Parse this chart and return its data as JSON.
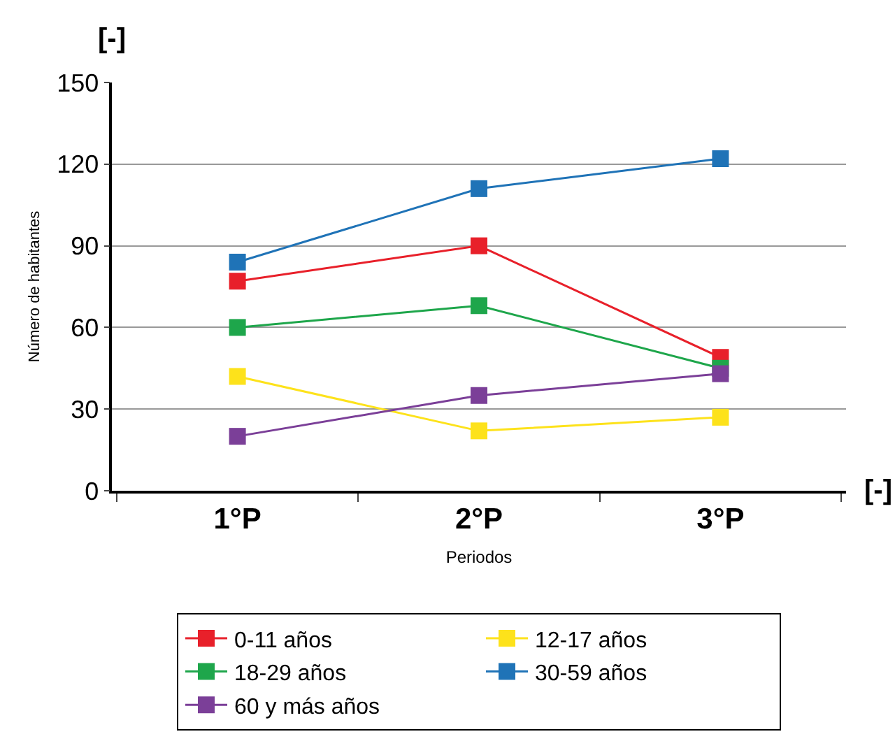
{
  "chart_data": {
    "type": "line",
    "xlabel": "Periodos",
    "ylabel": "Número de habitantes",
    "categories": [
      "1°P",
      "2°P",
      "3°P"
    ],
    "series": [
      {
        "name": "0-11 años",
        "color": "#e8202a",
        "values": [
          77,
          90,
          49
        ]
      },
      {
        "name": "12-17 años",
        "color": "#fde21b",
        "values": [
          42,
          22,
          27
        ]
      },
      {
        "name": "18-29 años",
        "color": "#1ea64b",
        "values": [
          60,
          68,
          45
        ]
      },
      {
        "name": "30-59 años",
        "color": "#1f73b7",
        "values": [
          84,
          111,
          122
        ]
      },
      {
        "name": "60 y más años",
        "color": "#7b3f98",
        "values": [
          20,
          35,
          43
        ]
      }
    ],
    "ylim": [
      0,
      150
    ],
    "yticks": [
      0,
      30,
      60,
      90,
      120,
      150
    ],
    "grid": "y",
    "legend": "bottom",
    "marker": "square",
    "line_style": "solid",
    "annotations": [
      "[-]",
      "[-]"
    ]
  }
}
